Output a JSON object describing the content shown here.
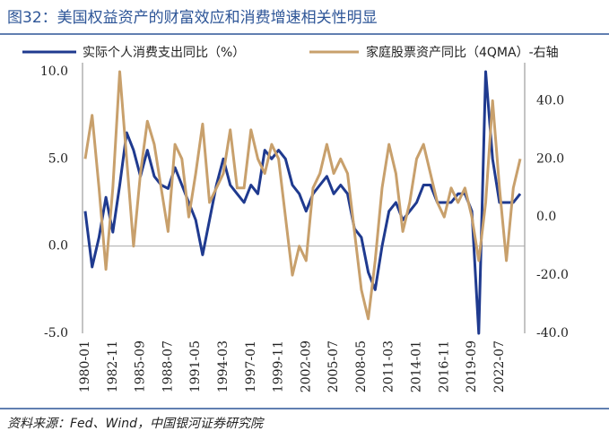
{
  "chart_data": {
    "type": "line",
    "title": "图32：美国权益资产的财富效应和消费增速相关性明显",
    "source": "资料来源：Fed、Wind，中国银河证券研究院",
    "categories": [
      "1980-01",
      null,
      null,
      null,
      "1982-11",
      null,
      null,
      null,
      "1985-09",
      null,
      null,
      null,
      "1988-07",
      null,
      null,
      null,
      "1991-05",
      null,
      null,
      null,
      "1994-03",
      null,
      null,
      null,
      "1997-01",
      null,
      null,
      null,
      "1999-11",
      null,
      null,
      null,
      "2002-09",
      null,
      null,
      null,
      "2005-07",
      null,
      null,
      null,
      "2008-05",
      null,
      null,
      null,
      "2011-03",
      null,
      null,
      null,
      "2014-01",
      null,
      null,
      null,
      "2016-11",
      null,
      null,
      null,
      "2019-09",
      null,
      null,
      null,
      "2022-07",
      null,
      null,
      null
    ],
    "series": [
      {
        "name": "实际个人消费支出同比（%）",
        "color": "#1f3a8f",
        "axis": "y",
        "values": [
          2.0,
          -1.2,
          0.5,
          2.8,
          0.8,
          3.5,
          6.5,
          5.5,
          4.0,
          5.5,
          4.0,
          3.5,
          3.3,
          4.5,
          3.5,
          2.5,
          1.5,
          -0.5,
          1.5,
          3.5,
          5.0,
          3.5,
          3.0,
          2.5,
          3.5,
          3.0,
          5.5,
          5.0,
          5.5,
          5.0,
          3.5,
          3.0,
          2.0,
          3.0,
          3.5,
          4.0,
          3.0,
          3.5,
          3.0,
          1.0,
          0.5,
          -1.5,
          -2.5,
          0.0,
          2.0,
          2.5,
          1.5,
          2.0,
          2.5,
          3.5,
          3.5,
          2.5,
          2.5,
          2.5,
          3.0,
          3.0,
          2.0,
          -5.0,
          10.0,
          5.0,
          2.5,
          2.5,
          2.5,
          3.0
        ]
      },
      {
        "name": "家庭股票资产同比（4QMA）-右轴",
        "color": "#c8a06c",
        "axis": "y2",
        "values": [
          20,
          35,
          10,
          -18,
          10,
          50,
          20,
          -10,
          15,
          33,
          25,
          10,
          -5,
          25,
          20,
          0,
          15,
          32,
          5,
          10,
          15,
          30,
          10,
          10,
          30,
          20,
          15,
          25,
          20,
          0,
          -20,
          -10,
          -15,
          10,
          15,
          25,
          15,
          20,
          15,
          -5,
          -25,
          -35,
          -15,
          10,
          25,
          15,
          -5,
          5,
          20,
          25,
          15,
          5,
          0,
          10,
          5,
          10,
          0,
          -15,
          5,
          40,
          10,
          -15,
          10,
          20
        ]
      }
    ],
    "ylim": [
      -5,
      10
    ],
    "yticks": [
      {
        "value": -5,
        "label": "-5.0"
      },
      {
        "value": 0,
        "label": "0.0"
      },
      {
        "value": 5,
        "label": "5.0"
      },
      {
        "value": 10,
        "label": "10.0"
      }
    ],
    "y2lim": [
      -40,
      50
    ],
    "y2ticks": [
      {
        "value": -40,
        "label": "-40.0"
      },
      {
        "value": -20,
        "label": "-20.0"
      },
      {
        "value": 0,
        "label": "0.0"
      },
      {
        "value": 20,
        "label": "20.0"
      },
      {
        "value": 40,
        "label": "40.0"
      }
    ]
  }
}
